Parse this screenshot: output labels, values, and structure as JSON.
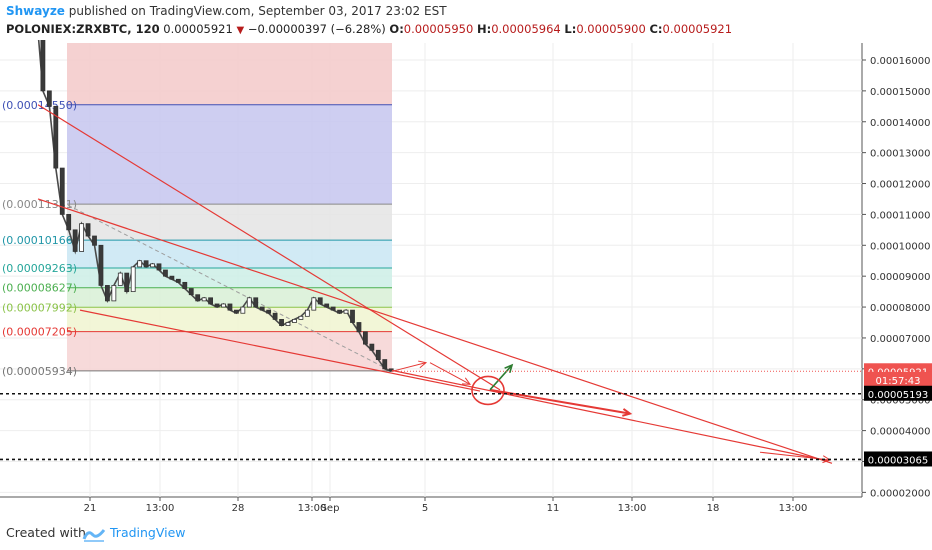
{
  "header": {
    "author": "Shwayze",
    "published_text": "published on TradingView.com, September 03, 2017 23:02 EST",
    "symbol": "POLONIEX:ZRXBTC, 120",
    "last": "0.00005921",
    "change": "−0.00000397 (−6.28%)",
    "o_label": "O:",
    "o_value": "0.00005950",
    "h_label": "H:",
    "h_value": "0.00005964",
    "l_label": "L:",
    "l_value": "0.00005900",
    "c_label": "C:",
    "c_value": "0.00005921"
  },
  "footer": {
    "created_with": "Created with",
    "brand": "TradingView"
  },
  "chart_data": {
    "type": "line",
    "title": "",
    "xlabel": "",
    "ylabel": "",
    "x_tick_labels": [
      "21",
      "13:00",
      "28",
      "13:00",
      "Sep",
      "5",
      "11",
      "13:00",
      "18",
      "13:00"
    ],
    "y_tick_labels": [
      "0.00002000",
      "0.00003000",
      "0.00004000",
      "0.00005000",
      "0.00006000",
      "0.00007000",
      "0.00008000",
      "0.00009000",
      "0.00010000",
      "0.00011000",
      "0.00012000",
      "0.00013000",
      "0.00014000",
      "0.00015000",
      "0.00016000"
    ],
    "ylim": [
      1.85e-05,
      0.0001655
    ],
    "grid": true,
    "price_series": [
      [
        0.5,
        0.000175
      ],
      [
        1,
        0.00015
      ],
      [
        1.5,
        0.000145
      ],
      [
        2,
        0.000125
      ],
      [
        2.5,
        0.00011
      ],
      [
        3,
        0.000105
      ],
      [
        3.5,
        9.8e-05
      ],
      [
        4,
        0.000107
      ],
      [
        4.5,
        0.000103
      ],
      [
        5,
        0.0001
      ],
      [
        5.5,
        8.7e-05
      ],
      [
        6,
        8.2e-05
      ],
      [
        6.5,
        8.7e-05
      ],
      [
        7,
        9.1e-05
      ],
      [
        7.5,
        8.5e-05
      ],
      [
        8,
        9.3e-05
      ],
      [
        8.5,
        9.5e-05
      ],
      [
        9,
        9.3e-05
      ],
      [
        9.5,
        9.4e-05
      ],
      [
        10,
        9.2e-05
      ],
      [
        10.5,
        9e-05
      ],
      [
        11,
        8.9e-05
      ],
      [
        11.5,
        8.8e-05
      ],
      [
        12,
        8.6e-05
      ],
      [
        12.5,
        8.4e-05
      ],
      [
        13,
        8.2e-05
      ],
      [
        13.5,
        8.3e-05
      ],
      [
        14,
        8.1e-05
      ],
      [
        14.5,
        8e-05
      ],
      [
        15,
        8.1e-05
      ],
      [
        15.5,
        7.9e-05
      ],
      [
        16,
        7.8e-05
      ],
      [
        16.5,
        8e-05
      ],
      [
        17,
        8.3e-05
      ],
      [
        17.5,
        8e-05
      ],
      [
        18,
        7.9e-05
      ],
      [
        18.5,
        7.8e-05
      ],
      [
        19,
        7.6e-05
      ],
      [
        19.5,
        7.4e-05
      ],
      [
        20,
        7.5e-05
      ],
      [
        20.5,
        7.6e-05
      ],
      [
        21,
        7.7e-05
      ],
      [
        21.5,
        7.9e-05
      ],
      [
        22,
        8.3e-05
      ],
      [
        22.5,
        8.1e-05
      ],
      [
        23,
        8e-05
      ],
      [
        23.5,
        7.9e-05
      ],
      [
        24,
        7.8e-05
      ],
      [
        24.5,
        7.9e-05
      ],
      [
        25,
        7.5e-05
      ],
      [
        25.5,
        7.2e-05
      ],
      [
        26,
        6.8e-05
      ],
      [
        26.5,
        6.6e-05
      ],
      [
        27,
        6.3e-05
      ],
      [
        27.5,
        6e-05
      ],
      [
        28,
        5.921e-05
      ]
    ],
    "fib_levels": [
      {
        "label": "(0.00014550)",
        "value": 0.0001455,
        "color": "#3f51b5"
      },
      {
        "label": "(0.00011331)",
        "value": 0.00011331,
        "color": "#888888"
      },
      {
        "label": "(0.00010166)",
        "value": 0.00010166,
        "color": "#2196a8"
      },
      {
        "label": "(0.00009263)",
        "value": 9.263e-05,
        "color": "#26a69a"
      },
      {
        "label": "(0.00008627)",
        "value": 8.627e-05,
        "color": "#4caf50"
      },
      {
        "label": "(0.00007992)",
        "value": 7.992e-05,
        "color": "#8bc34a"
      },
      {
        "label": "(0.00007205)",
        "value": 7.205e-05,
        "color": "#e53935"
      },
      {
        "label": "(0.00005934)",
        "value": 5.934e-05,
        "color": "#777777"
      }
    ],
    "price_labels": [
      {
        "text": "0.00005921",
        "value": 5.921e-05,
        "bg": "#ef5350"
      },
      {
        "text": "01:57:43",
        "value": 5.64e-05,
        "bg": "#ef5350"
      },
      {
        "text": "0.00005193",
        "value": 5.193e-05,
        "bg": "#000000"
      },
      {
        "text": "0.00003065",
        "value": 3.065e-05,
        "bg": "#000000"
      }
    ],
    "horizontal_lines": [
      5.193e-05,
      3.065e-05
    ],
    "colors": {
      "drawing": "#e53935",
      "up_arrow": "#2e7d32"
    }
  }
}
